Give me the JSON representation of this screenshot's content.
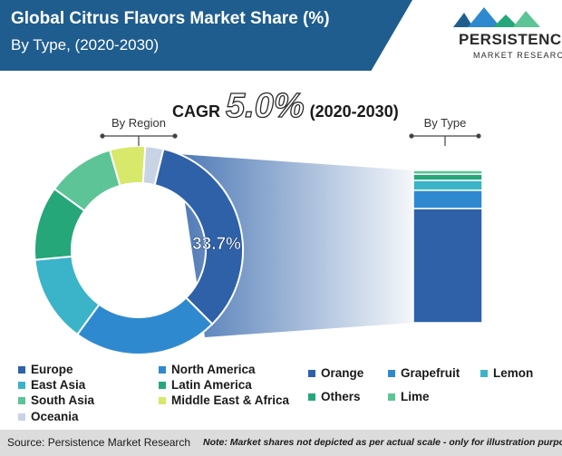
{
  "header": {
    "title": "Global Citrus Flavors Market Share (%)",
    "subtitle": "By Type, (2020-2030)"
  },
  "logo": {
    "name": "PERSISTENCE",
    "tagline": "MARKET RESEARCH"
  },
  "cagr": {
    "label": "CAGR",
    "value": "5.0%",
    "period": "(2020-2030)"
  },
  "chart_data": [
    {
      "type": "pie",
      "group_label": "By Region",
      "center_label": "33.7%",
      "slices": [
        {
          "label": "Europe",
          "value": 33.7,
          "color": "#2e61a8"
        },
        {
          "label": "North America",
          "value": 22.5,
          "color": "#2f89cf"
        },
        {
          "label": "East Asia",
          "value": 13.5,
          "color": "#3bb3c8"
        },
        {
          "label": "Latin America",
          "value": 11.5,
          "color": "#25a779"
        },
        {
          "label": "South Asia",
          "value": 10.5,
          "color": "#5cc496"
        },
        {
          "label": "Middle East & Africa",
          "value": 5.5,
          "color": "#d7e86b"
        },
        {
          "label": "Oceania",
          "value": 2.8,
          "color": "#c9d3e6"
        }
      ]
    },
    {
      "type": "bar",
      "group_label": "By Type",
      "stacked": true,
      "segments": [
        {
          "label": "Orange",
          "value": 75,
          "color": "#2e61a8"
        },
        {
          "label": "Grapefruit",
          "value": 12,
          "color": "#2f89cf"
        },
        {
          "label": "Lemon",
          "value": 6.5,
          "color": "#3bb3c8"
        },
        {
          "label": "Others",
          "value": 4,
          "color": "#25a779"
        },
        {
          "label": "Lime",
          "value": 2.5,
          "color": "#5cc496"
        }
      ]
    }
  ],
  "footer": {
    "source": "Source: Persistence Market Research",
    "note": "Note: Market shares not depicted as per actual scale - only for illustration purposes"
  }
}
